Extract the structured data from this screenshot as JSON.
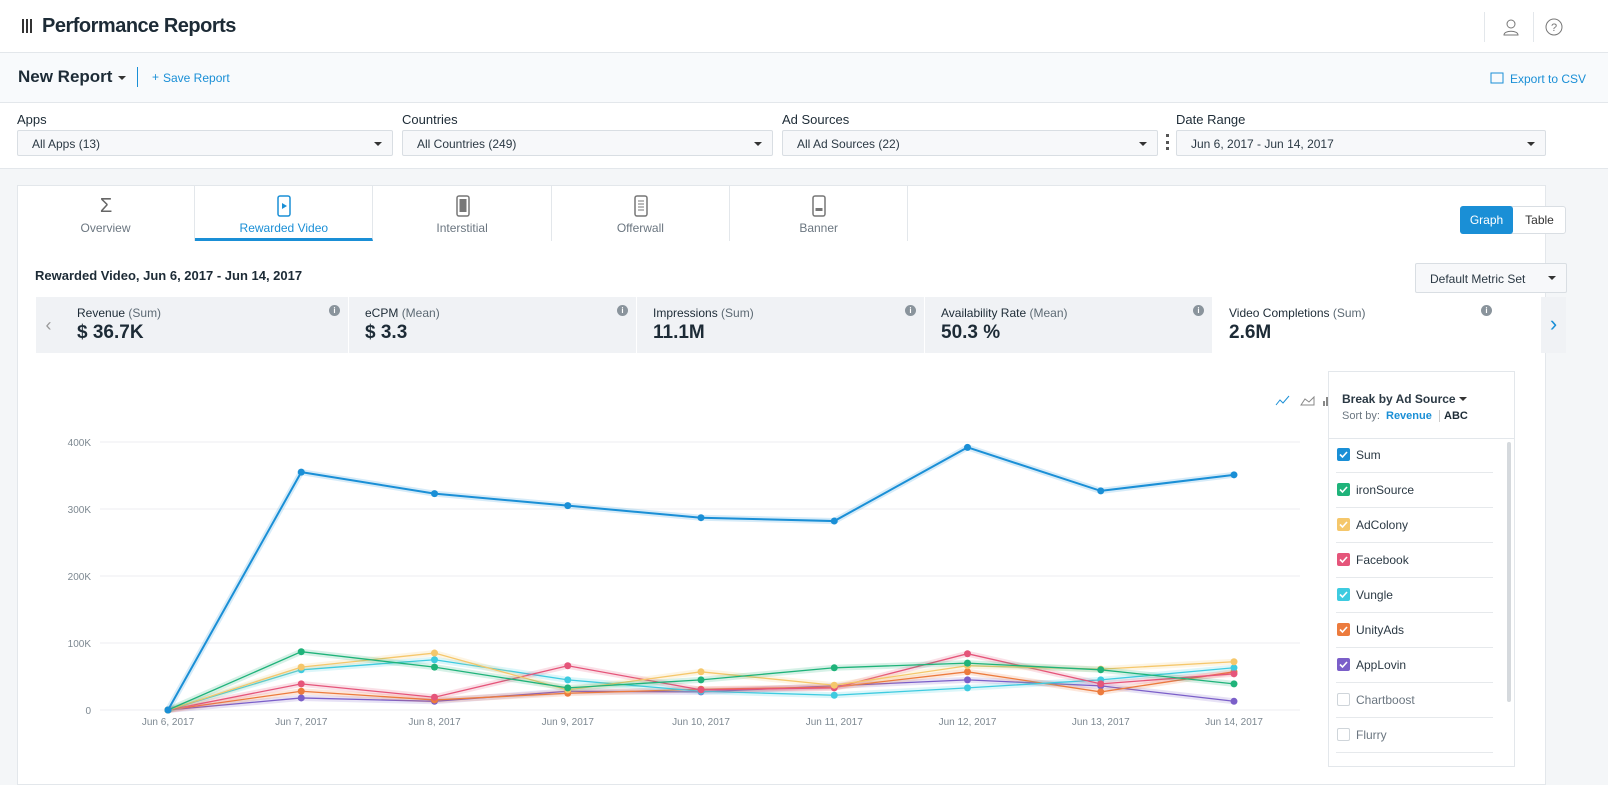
{
  "header": {
    "title": "Performance Reports"
  },
  "report": {
    "name": "New Report",
    "save": "Save Report",
    "export": "Export to CSV"
  },
  "filters": [
    {
      "label": "Apps",
      "value": "All Apps (13)"
    },
    {
      "label": "Countries",
      "value": "All Countries (249)"
    },
    {
      "label": "Ad Sources",
      "value": "All Ad Sources (22)"
    },
    {
      "label": "Date Range",
      "value": "Jun 6, 2017 - Jun 14, 2017"
    }
  ],
  "tabs": [
    "Overview",
    "Rewarded Video",
    "Interstitial",
    "Offerwall",
    "Banner"
  ],
  "view_toggle": [
    "Graph",
    "Table"
  ],
  "section_title": "Rewarded Video, Jun 6, 2017 - Jun 14, 2017",
  "metric_set": "Default Metric Set",
  "metrics": [
    {
      "name": "Revenue",
      "agg": "(Sum)",
      "value": "$ 36.7K"
    },
    {
      "name": "eCPM",
      "agg": "(Mean)",
      "value": "$ 3.3"
    },
    {
      "name": "Impressions",
      "agg": "(Sum)",
      "value": "11.1M"
    },
    {
      "name": "Availability Rate",
      "agg": "(Mean)",
      "value": "50.3 %"
    },
    {
      "name": "Video Completions",
      "agg": "(Sum)",
      "value": "2.6M"
    }
  ],
  "chart_data": {
    "type": "line",
    "categories": [
      "Jun 6, 2017",
      "Jun 7, 2017",
      "Jun 8, 2017",
      "Jun 9, 2017",
      "Jun 10, 2017",
      "Jun 11, 2017",
      "Jun 12, 2017",
      "Jun 13, 2017",
      "Jun 14, 2017"
    ],
    "ylim": [
      0,
      420000
    ],
    "yticks": [
      0,
      {
        "value": 100000,
        "label": "100K"
      },
      {
        "value": 200000,
        "label": "200K"
      },
      {
        "value": 300000,
        "label": "300K"
      },
      {
        "value": 400000,
        "label": "400K"
      }
    ],
    "grid": true,
    "series": [
      {
        "name": "Sum",
        "color": "#1a8fd6",
        "values": [
          0,
          355000,
          323000,
          305000,
          287000,
          282000,
          392000,
          327000,
          351000
        ]
      },
      {
        "name": "ironSource",
        "color": "#1fb37a",
        "values": [
          0,
          87000,
          64000,
          33000,
          45000,
          63000,
          70000,
          60000,
          39000
        ]
      },
      {
        "name": "AdColony",
        "color": "#f5c76b",
        "values": [
          0,
          64000,
          85000,
          30000,
          57000,
          37000,
          66000,
          61000,
          72000
        ]
      },
      {
        "name": "Facebook",
        "color": "#e5557a",
        "values": [
          0,
          39000,
          19000,
          66000,
          30000,
          33000,
          84000,
          39000,
          54000
        ]
      },
      {
        "name": "Vungle",
        "color": "#3ecbe0",
        "values": [
          0,
          60000,
          75000,
          45000,
          28000,
          22000,
          33000,
          45000,
          63000
        ]
      },
      {
        "name": "UnityAds",
        "color": "#ec7b3d",
        "values": [
          0,
          28000,
          15000,
          25000,
          31000,
          34000,
          57000,
          27000,
          57000
        ]
      },
      {
        "name": "AppLovin",
        "color": "#7b5fc9",
        "values": [
          0,
          18000,
          13000,
          28000,
          27000,
          36000,
          45000,
          36000,
          13000
        ]
      }
    ]
  },
  "panel": {
    "break_by": "Break by Ad Source",
    "sort_label": "Sort by:",
    "sort_options": [
      "Revenue",
      "ABC"
    ],
    "unchecked": [
      "Chartboost",
      "Flurry"
    ]
  }
}
